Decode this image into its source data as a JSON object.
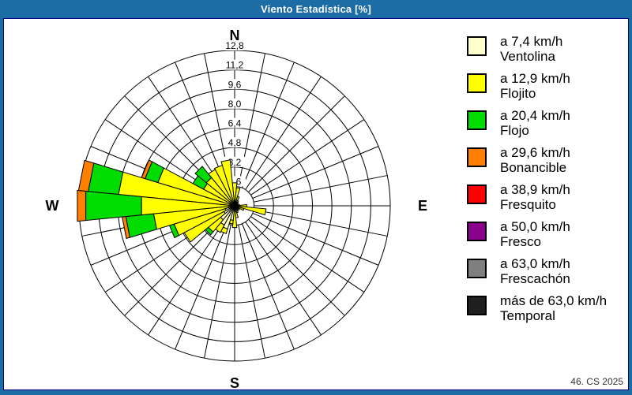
{
  "window": {
    "title": "Viento Estadística [%]",
    "footer": "46. CS 2025"
  },
  "colors": {
    "titlebar": "#1C6CA6",
    "title_text": "#FFFFFF",
    "content_border": "#000080",
    "content_background": "#FFFFFF",
    "grid": "#000000"
  },
  "chart_data": {
    "type": "wind-rose",
    "title": "Viento Estadística [%]",
    "units": "%",
    "sector_count": 32,
    "sector_width_deg": 11.25,
    "rings": [
      1.6,
      3.2,
      4.8,
      6.4,
      8.0,
      9.6,
      11.2,
      12.8
    ],
    "ring_labels": [
      "1,6",
      "3,2",
      "4,8",
      "6,4",
      "8,0",
      "9,6",
      "11,2",
      "12,8"
    ],
    "radial_max": 12.8,
    "grid_on": true,
    "legend_position": "right",
    "compass_labels": {
      "north": "N",
      "east": "E",
      "south": "S",
      "west": "W"
    },
    "speed_classes": [
      {
        "id": "ventolina",
        "speed_label": "a 7,4 km/h",
        "name": "Ventolina",
        "color": "#FFFFCC"
      },
      {
        "id": "flojito",
        "speed_label": "a 12,9 km/h",
        "name": "Flojito",
        "color": "#FFFF00"
      },
      {
        "id": "flojo",
        "speed_label": "a 20,4 km/h",
        "name": "Flojo",
        "color": "#00DC00"
      },
      {
        "id": "bonancible",
        "speed_label": "a 29,6 km/h",
        "name": "Bonancible",
        "color": "#FF8000"
      },
      {
        "id": "fresquito",
        "speed_label": "a 38,9 km/h",
        "name": "Fresquito",
        "color": "#FF0000"
      },
      {
        "id": "fresco",
        "speed_label": "a 50,0 km/h",
        "name": "Fresco",
        "color": "#8B008B"
      },
      {
        "id": "frescachon",
        "speed_label": "a 63,0 km/h",
        "name": "Frescachón",
        "color": "#7F7F7F"
      },
      {
        "id": "temporal",
        "speed_label": "más de 63,0 km/h",
        "name": "Temporal",
        "color": "#1F1F1F"
      }
    ],
    "sectors": [
      {
        "dir": "N",
        "deg": 0.0,
        "segments": [
          0.2,
          1.7,
          0,
          0,
          0,
          0,
          0,
          0
        ]
      },
      {
        "dir": "NbE",
        "deg": 11.25,
        "segments": [
          0.3,
          1.2,
          0,
          0,
          0,
          0,
          0,
          0
        ]
      },
      {
        "dir": "NNE",
        "deg": 22.5,
        "segments": [
          0.2,
          0.6,
          0,
          0,
          0,
          0,
          0,
          0
        ]
      },
      {
        "dir": "NEbN",
        "deg": 33.75,
        "segments": [
          0.1,
          0.4,
          0,
          0,
          0,
          0,
          0,
          0
        ]
      },
      {
        "dir": "NE",
        "deg": 45.0,
        "segments": [
          0.1,
          0.3,
          0,
          0,
          0,
          0,
          0,
          0
        ]
      },
      {
        "dir": "NEbE",
        "deg": 56.25,
        "segments": [
          0.1,
          0.2,
          0,
          0,
          0,
          0,
          0,
          0
        ]
      },
      {
        "dir": "ENE",
        "deg": 67.5,
        "segments": [
          0.1,
          0.2,
          0,
          0,
          0,
          0,
          0,
          0
        ]
      },
      {
        "dir": "EbN",
        "deg": 78.75,
        "segments": [
          0.1,
          0.3,
          0,
          0,
          0,
          0,
          0,
          0
        ]
      },
      {
        "dir": "E",
        "deg": 90.0,
        "segments": [
          0.2,
          0.8,
          0,
          0,
          0,
          0,
          0,
          0
        ]
      },
      {
        "dir": "EbS",
        "deg": 101.25,
        "segments": [
          0.3,
          2.3,
          0,
          0,
          0,
          0,
          0,
          0
        ]
      },
      {
        "dir": "ESE",
        "deg": 112.5,
        "segments": [
          0.2,
          0.6,
          0,
          0,
          0,
          0,
          0,
          0
        ]
      },
      {
        "dir": "SEbE",
        "deg": 123.75,
        "segments": [
          0.1,
          0.3,
          0,
          0,
          0,
          0,
          0,
          0
        ]
      },
      {
        "dir": "SE",
        "deg": 135.0,
        "segments": [
          0.3,
          0.2,
          0,
          0,
          0,
          0,
          0,
          0
        ]
      },
      {
        "dir": "SEbS",
        "deg": 146.25,
        "segments": [
          0.2,
          0.2,
          0,
          0,
          0,
          0,
          0,
          0
        ]
      },
      {
        "dir": "SSE",
        "deg": 157.5,
        "segments": [
          0.4,
          0.2,
          0,
          0,
          0,
          0,
          0,
          0
        ]
      },
      {
        "dir": "SbE",
        "deg": 168.75,
        "segments": [
          0.5,
          0.5,
          0,
          0,
          0,
          0,
          0,
          0
        ]
      },
      {
        "dir": "S",
        "deg": 180.0,
        "segments": [
          0.3,
          1.5,
          0,
          0,
          0,
          0,
          0,
          0
        ]
      },
      {
        "dir": "SbW",
        "deg": 191.25,
        "segments": [
          1.2,
          0.3,
          0,
          0,
          0,
          0,
          0,
          0
        ]
      },
      {
        "dir": "SSW",
        "deg": 202.5,
        "segments": [
          2.0,
          0.4,
          0,
          0,
          0,
          0,
          0,
          0
        ]
      },
      {
        "dir": "SWbS",
        "deg": 213.75,
        "segments": [
          1.8,
          0.7,
          0,
          0,
          0,
          0,
          0,
          0
        ]
      },
      {
        "dir": "SW",
        "deg": 225.0,
        "segments": [
          1.5,
          1.3,
          0.3,
          0,
          0,
          0,
          0,
          0
        ]
      },
      {
        "dir": "SWbW",
        "deg": 236.25,
        "segments": [
          1.0,
          3.7,
          0,
          0,
          0,
          0,
          0,
          0
        ]
      },
      {
        "dir": "WSW",
        "deg": 247.5,
        "segments": [
          0.8,
          4.4,
          0.4,
          0,
          0,
          0,
          0,
          0
        ]
      },
      {
        "dir": "WbS",
        "deg": 258.75,
        "segments": [
          0.5,
          6.2,
          2.3,
          0.3,
          0,
          0,
          0,
          0
        ]
      },
      {
        "dir": "W",
        "deg": 270.0,
        "segments": [
          0.4,
          7.3,
          4.6,
          0.7,
          0,
          0,
          0,
          0
        ]
      },
      {
        "dir": "WbN",
        "deg": 281.25,
        "segments": [
          0.4,
          9.2,
          2.5,
          0.8,
          0,
          0,
          0,
          0
        ]
      },
      {
        "dir": "WNW",
        "deg": 292.5,
        "segments": [
          0.4,
          6.2,
          1.1,
          0.3,
          0,
          0,
          0,
          0
        ]
      },
      {
        "dir": "NWbW",
        "deg": 303.75,
        "segments": [
          0.3,
          2.6,
          1.0,
          0,
          0,
          0,
          0,
          0
        ]
      },
      {
        "dir": "NW",
        "deg": 315.0,
        "segments": [
          0.3,
          2.7,
          1.2,
          0,
          0,
          0,
          0,
          0
        ]
      },
      {
        "dir": "NWbN",
        "deg": 326.25,
        "segments": [
          0.3,
          3.1,
          0,
          0,
          0,
          0,
          0,
          0
        ]
      },
      {
        "dir": "NNW",
        "deg": 337.5,
        "segments": [
          0.2,
          3.3,
          0,
          0,
          0,
          0,
          0,
          0
        ]
      },
      {
        "dir": "NbW",
        "deg": 348.75,
        "segments": [
          0.2,
          3.6,
          0,
          0,
          0,
          0,
          0,
          0
        ]
      }
    ]
  }
}
